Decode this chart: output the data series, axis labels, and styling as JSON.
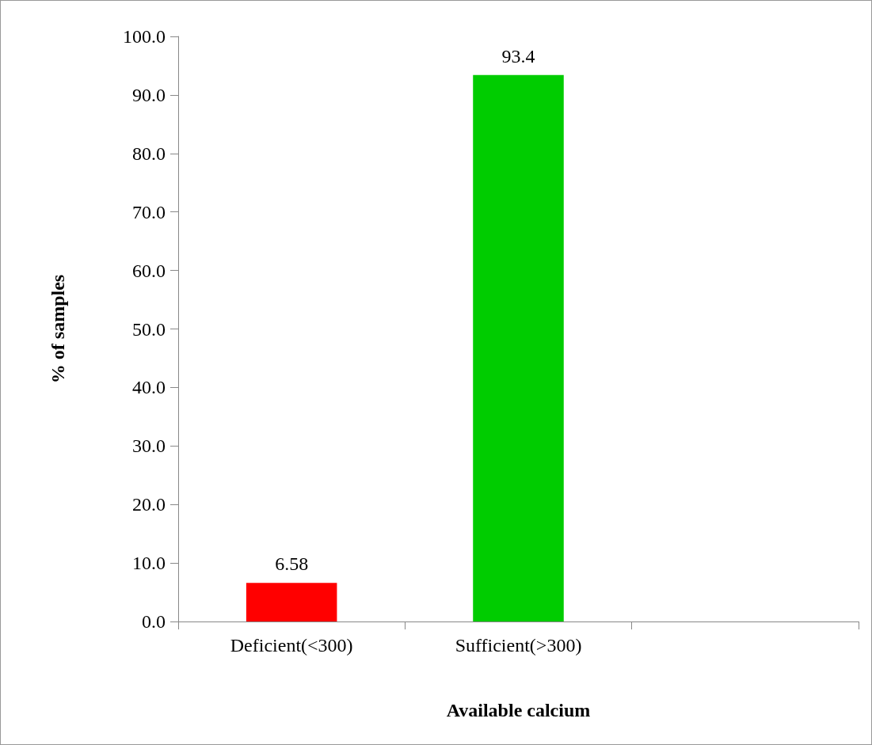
{
  "chart_data": {
    "type": "bar",
    "xlabel": "Available calcium",
    "ylabel": "% of samples",
    "categories": [
      "Deficient(<300)",
      "Sufficient(>300)",
      null
    ],
    "values": [
      6.58,
      93.4,
      null
    ],
    "colors": [
      "#ff0000",
      "#00cc00",
      "#00cc00"
    ],
    "data_labels": true,
    "ylim": [
      0,
      100
    ],
    "yticks": [
      {
        "value": 0,
        "label": "0.0"
      },
      {
        "value": 10,
        "label": "10.0"
      },
      {
        "value": 20,
        "label": "20.0"
      },
      {
        "value": 30,
        "label": "30.0"
      },
      {
        "value": 40,
        "label": "40.0"
      },
      {
        "value": 50,
        "label": "50.0"
      },
      {
        "value": 60,
        "label": "60.0"
      },
      {
        "value": 70,
        "label": "70.0"
      },
      {
        "value": 80,
        "label": "80.0"
      },
      {
        "value": 90,
        "label": "90.0"
      },
      {
        "value": 100,
        "label": "100.0"
      }
    ],
    "grid": false
  }
}
